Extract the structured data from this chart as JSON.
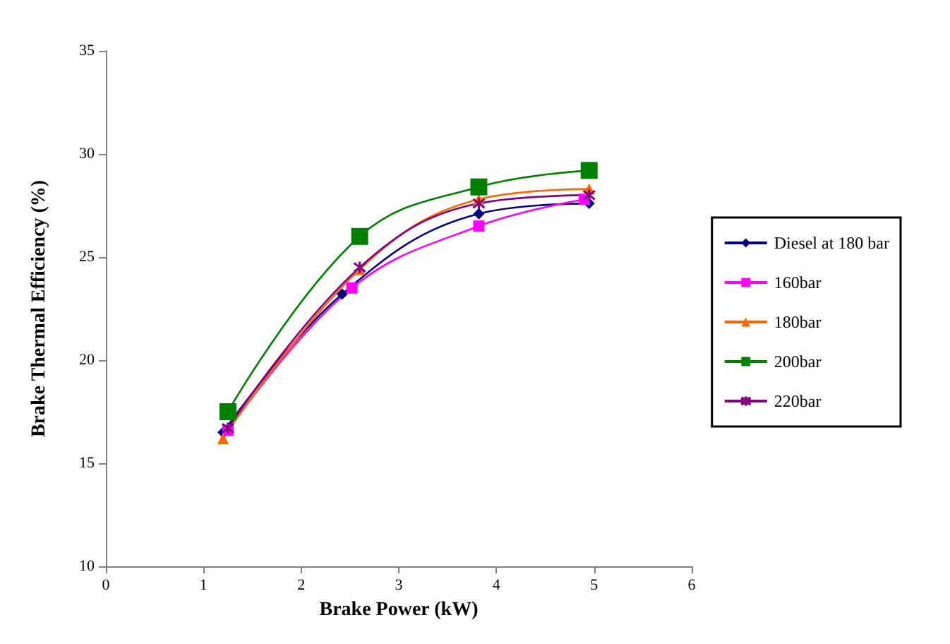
{
  "chart_data": {
    "type": "line",
    "xlabel": "Brake Power (kW)",
    "ylabel": "Brake Thermal Efficiency (%)",
    "xlim": [
      0,
      6
    ],
    "xticks": [
      0,
      1,
      2,
      3,
      4,
      5,
      6
    ],
    "ylim": [
      10,
      35
    ],
    "yticks": [
      10,
      15,
      20,
      25,
      30,
      35
    ],
    "grid": false,
    "legend": "right",
    "series": [
      {
        "name": "Diesel at 180 bar",
        "color": "#000080",
        "marker": "diamond",
        "x": [
          1.2,
          2.42,
          3.82,
          4.95
        ],
        "values": [
          16.5,
          23.2,
          27.1,
          27.6
        ]
      },
      {
        "name": "160bar",
        "color": "#ff00ff",
        "marker": "square",
        "x": [
          1.25,
          2.52,
          3.82,
          4.9
        ],
        "values": [
          16.6,
          23.5,
          26.5,
          27.8
        ]
      },
      {
        "name": "180bar",
        "color": "#ff6600",
        "marker": "triangle",
        "x": [
          1.2,
          2.6,
          3.82,
          4.95
        ],
        "values": [
          16.2,
          24.4,
          27.8,
          28.3
        ]
      },
      {
        "name": "200bar",
        "color": "#008000",
        "marker": "square",
        "x": [
          1.25,
          2.6,
          3.82,
          4.95
        ],
        "values": [
          17.5,
          26.0,
          28.4,
          29.2
        ]
      },
      {
        "name": "220bar",
        "color": "#800080",
        "marker": "cross",
        "x": [
          1.25,
          2.6,
          3.82,
          4.95
        ],
        "values": [
          16.7,
          24.5,
          27.6,
          28.0
        ]
      }
    ]
  }
}
